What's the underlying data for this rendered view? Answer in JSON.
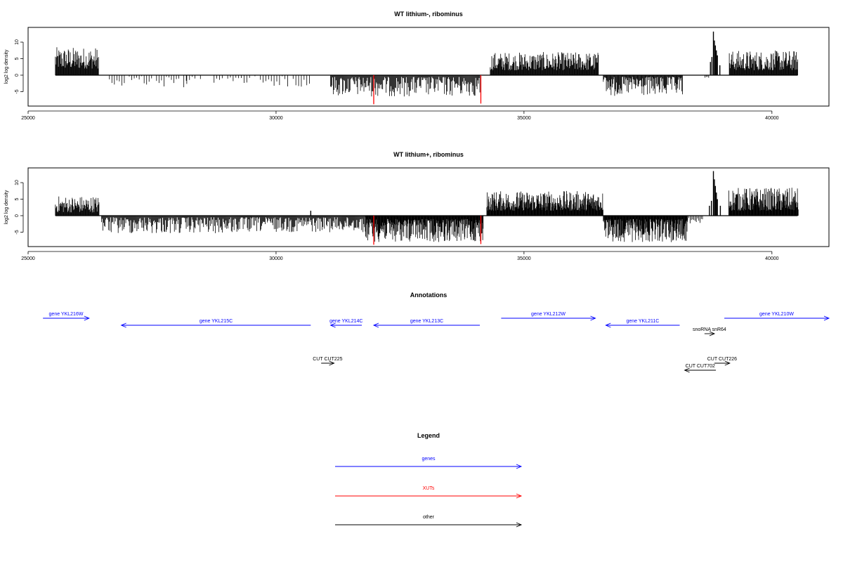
{
  "chart_data": [
    {
      "type": "bar",
      "title": "WT lithium-, ribominus",
      "ylabel": "log2 log density",
      "xlim": [
        25000,
        41150
      ],
      "ylim": [
        -9,
        14
      ],
      "xticks": [
        "25000",
        "30000",
        "35000",
        "40000"
      ],
      "yticks": [
        "-5",
        "0",
        "5",
        "10"
      ],
      "grid": false,
      "series": [
        {
          "color": "#000000",
          "segments": [
            {
              "x0": 25550,
              "x1": 26420,
              "sign": 1,
              "lo": 2,
              "hi": 8.5,
              "step": 10
            },
            {
              "x0": 26640,
              "x1": 28200,
              "sign": -1,
              "lo": 0.3,
              "hi": 3.8,
              "step": 50
            },
            {
              "x0": 28200,
              "x1": 30700,
              "sign": -1,
              "lo": 0.3,
              "hi": 3.5,
              "step": 55
            },
            {
              "x0": 31100,
              "x1": 34120,
              "sign": -1,
              "lo": 0.5,
              "hi": 6.5,
              "step": 14
            },
            {
              "x0": 34320,
              "x1": 36500,
              "sign": 1,
              "lo": 1.5,
              "hi": 7,
              "step": 10
            },
            {
              "x0": 36600,
              "x1": 38200,
              "sign": -1,
              "lo": 0.5,
              "hi": 6.5,
              "step": 12
            },
            {
              "x0": 38650,
              "x1": 38730,
              "sign": -1,
              "lo": 0.5,
              "hi": 2,
              "step": 25
            },
            {
              "x0": 39140,
              "x1": 40520,
              "sign": 1,
              "lo": 1.5,
              "hi": 7.5,
              "step": 10
            }
          ]
        },
        {
          "color": "#000000",
          "spike": [
            {
              "x": 38820,
              "v": 13.2
            },
            {
              "x": 38840,
              "v": 10.5
            },
            {
              "x": 38860,
              "v": 9
            },
            {
              "x": 38880,
              "v": 7.5
            },
            {
              "x": 38900,
              "v": 6
            },
            {
              "x": 38760,
              "v": 4
            },
            {
              "x": 38790,
              "v": 5.5
            },
            {
              "x": 38950,
              "v": 3
            }
          ]
        },
        {
          "color": "#ff0000",
          "name": "XUTs",
          "spike": [
            {
              "x": 31970,
              "v": -8.8
            },
            {
              "x": 34130,
              "v": -8.6
            }
          ]
        }
      ]
    },
    {
      "type": "bar",
      "title": "WT lithium+, ribominus",
      "ylabel": "log2 log density",
      "xlim": [
        25000,
        41150
      ],
      "ylim": [
        -9,
        14
      ],
      "xticks": [
        "25000",
        "30000",
        "35000",
        "40000"
      ],
      "yticks": [
        "-5",
        "0",
        "5",
        "10"
      ],
      "grid": false,
      "series": [
        {
          "color": "#000000",
          "segments": [
            {
              "x0": 25550,
              "x1": 26430,
              "sign": 1,
              "lo": 1,
              "hi": 6,
              "step": 10
            },
            {
              "x0": 26480,
              "x1": 29500,
              "sign": -1,
              "lo": 0.5,
              "hi": 5.5,
              "step": 14
            },
            {
              "x0": 29500,
              "x1": 31800,
              "sign": -1,
              "lo": 0.5,
              "hi": 5,
              "step": 14
            },
            {
              "x0": 31800,
              "x1": 34180,
              "sign": -1,
              "lo": 1,
              "hi": 8,
              "step": 8
            },
            {
              "x0": 34250,
              "x1": 36600,
              "sign": 1,
              "lo": 1.5,
              "hi": 7.5,
              "step": 8
            },
            {
              "x0": 36600,
              "x1": 38300,
              "sign": -1,
              "lo": 1,
              "hi": 8,
              "step": 8
            },
            {
              "x0": 38300,
              "x1": 38600,
              "sign": -1,
              "lo": 0.5,
              "hi": 2.5,
              "step": 25
            },
            {
              "x0": 39130,
              "x1": 40530,
              "sign": 1,
              "lo": 1.5,
              "hi": 8.5,
              "step": 8
            }
          ]
        },
        {
          "color": "#000000",
          "spike": [
            {
              "x": 38820,
              "v": 13.5
            },
            {
              "x": 38840,
              "v": 11
            },
            {
              "x": 38860,
              "v": 9
            },
            {
              "x": 38880,
              "v": 7
            },
            {
              "x": 38900,
              "v": 5
            },
            {
              "x": 38740,
              "v": 3
            },
            {
              "x": 38780,
              "v": 4.5
            },
            {
              "x": 38960,
              "v": 3
            },
            {
              "x": 30700,
              "v": 1.5
            }
          ]
        },
        {
          "color": "#ff0000",
          "name": "XUTs",
          "spike": [
            {
              "x": 31970,
              "v": -8.8
            },
            {
              "x": 34130,
              "v": -8.6
            }
          ]
        }
      ]
    }
  ],
  "annotations": {
    "title": "Annotations",
    "genes_color": "#0000ff",
    "other_color": "#000000",
    "features": [
      {
        "label": "gene YKL216W",
        "start": 25300,
        "end": 26230,
        "dir": "right",
        "row": 0,
        "kind": "gene"
      },
      {
        "label": "gene YKL215C",
        "start": 26880,
        "end": 30700,
        "dir": "left",
        "row": 1,
        "kind": "gene"
      },
      {
        "label": "gene YKL214C",
        "start": 31100,
        "end": 31730,
        "dir": "left",
        "row": 1,
        "kind": "gene"
      },
      {
        "label": "gene YKL213C",
        "start": 31970,
        "end": 34110,
        "dir": "left",
        "row": 1,
        "kind": "gene"
      },
      {
        "label": "gene YKL212W",
        "start": 34540,
        "end": 36440,
        "dir": "right",
        "row": 0,
        "kind": "gene"
      },
      {
        "label": "gene YKL211C",
        "start": 36650,
        "end": 38140,
        "dir": "left",
        "row": 1,
        "kind": "gene"
      },
      {
        "label": "gene YKL210W",
        "start": 39040,
        "end": 41150,
        "dir": "right",
        "row": 0,
        "kind": "gene"
      },
      {
        "label": "snoRNA snR64",
        "start": 38640,
        "end": 38840,
        "dir": "right",
        "row": 2,
        "kind": "other"
      },
      {
        "label": "CUT CUT225",
        "start": 30910,
        "end": 31170,
        "dir": "right",
        "row": 3,
        "kind": "other"
      },
      {
        "label": "CUT CUT226",
        "start": 38840,
        "end": 39150,
        "dir": "right",
        "row": 3,
        "kind": "other"
      },
      {
        "label": "CUT CUT702",
        "start": 38240,
        "end": 38870,
        "dir": "left",
        "row": 4,
        "kind": "other"
      }
    ]
  },
  "legend": {
    "title": "Legend",
    "items": [
      {
        "label": "genes",
        "color": "#0000ff"
      },
      {
        "label": "XUTs",
        "color": "#ff0000"
      },
      {
        "label": "other",
        "color": "#000000"
      }
    ]
  }
}
